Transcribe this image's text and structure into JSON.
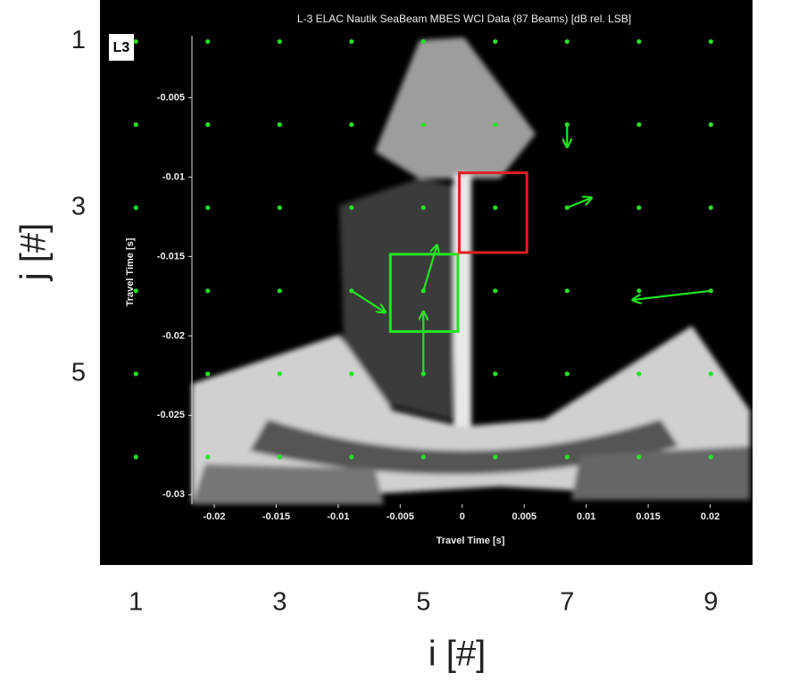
{
  "chart_data": {
    "type": "quiver",
    "x_label": "i [#]",
    "y_label": "j [#]",
    "xlim": [
      0.5,
      9.58
    ],
    "ylim": [
      0.5,
      7.3
    ],
    "y_inverted": true,
    "xticks": [
      1,
      3,
      5,
      7,
      9
    ],
    "yticks": [
      1,
      3,
      5
    ],
    "grid_i": [
      1,
      2,
      3,
      4,
      5,
      6,
      7,
      8,
      9
    ],
    "grid_j": [
      1,
      2,
      3,
      4,
      5,
      6
    ],
    "color": "#22e622",
    "vectors": {
      "i": [
        7,
        7,
        9,
        4,
        5,
        5
      ],
      "j": [
        2,
        3,
        4,
        4,
        5,
        4
      ],
      "du": [
        0,
        0.34,
        -1.09,
        0.47,
        0,
        0.19
      ],
      "dj": [
        0.27,
        -0.12,
        0.11,
        0.26,
        -0.75,
        -0.55
      ]
    },
    "regions": [
      {
        "color": "#22e622",
        "xlim": [
          4.54,
          5.48
        ],
        "ylim": [
          3.56,
          4.49
        ]
      },
      {
        "color": "#e02020",
        "xlim": [
          5.5,
          6.44
        ],
        "ylim": [
          2.58,
          3.54
        ]
      }
    ],
    "background": {
      "title": "L-3 ELAC Nautik SeaBeam MBES  WCI Data (87 Beams) [dB rel. LSB]",
      "logo": "L3",
      "x_label": "Travel Time [s]",
      "y_label": "Travel Time [s]",
      "xlim": [
        -0.0218,
        0.0232
      ],
      "ylim": [
        -0.0306,
        -0.0011
      ],
      "xticks": [
        -0.02,
        -0.015,
        -0.01,
        -0.005,
        0,
        0.005,
        0.01,
        0.015,
        0.02
      ],
      "yticks": [
        -0.005,
        -0.01,
        -0.015,
        -0.02,
        -0.025,
        -0.03
      ]
    }
  }
}
